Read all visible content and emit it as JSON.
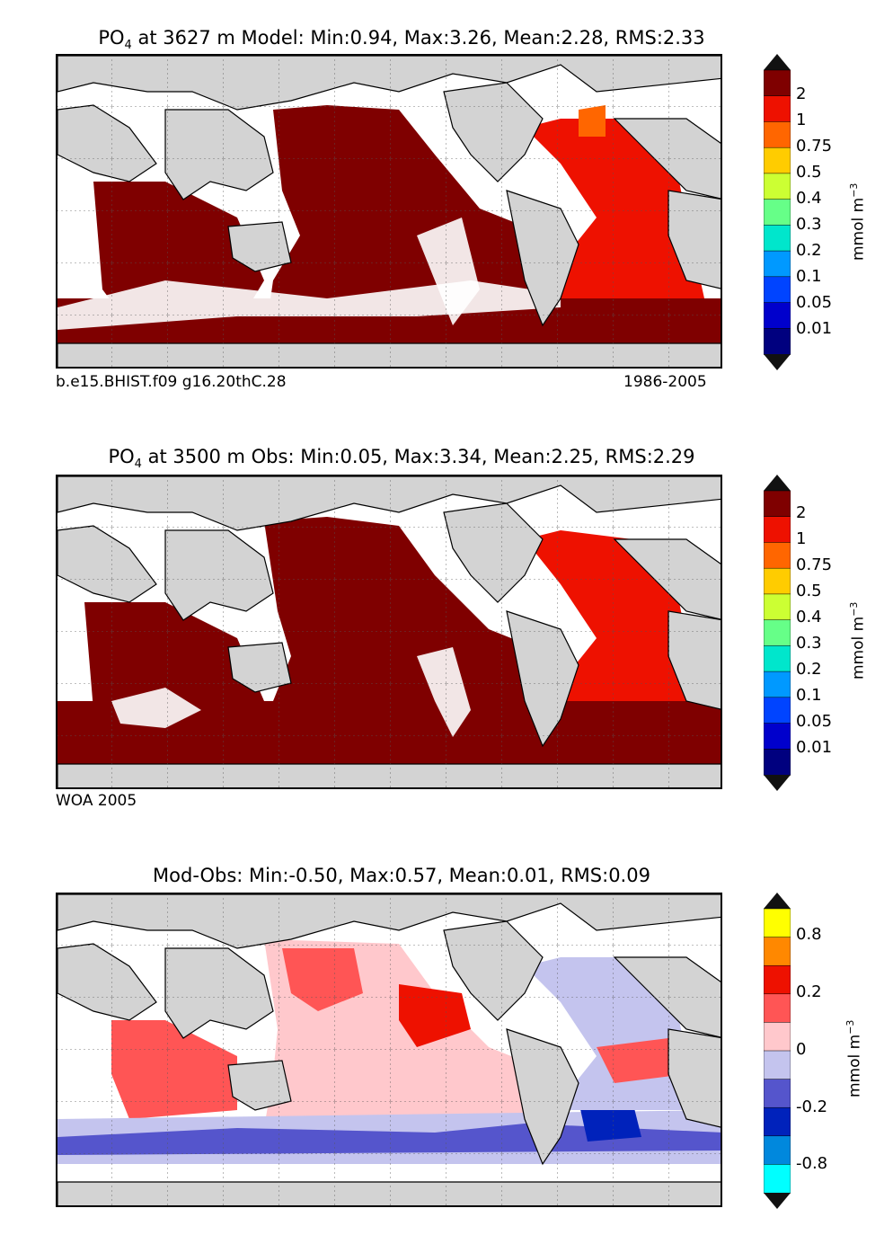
{
  "panels": [
    {
      "title_prefix": "PO",
      "title_sub": "4",
      "title_rest": " at 3627 m Model: Min:0.94, Max:3.26, Mean:2.28, RMS:2.33",
      "caption_left": "b.e15.BHIST.f09 g16.20thC.28",
      "caption_right": "1986-2005",
      "colorbar": {
        "unit_main": "mmol m",
        "unit_sup": "−3",
        "colors": [
          "#00007f",
          "#0000cc",
          "#0044ff",
          "#0099ff",
          "#00e6cc",
          "#66ff88",
          "#ccff33",
          "#ffcc00",
          "#ff6600",
          "#ee1100",
          "#7f0000"
        ],
        "ticks": [
          "2",
          "1",
          "0.75",
          "0.5",
          "0.4",
          "0.3",
          "0.2",
          "0.1",
          "0.05",
          "0.01"
        ]
      }
    },
    {
      "title_prefix": "PO",
      "title_sub": "4",
      "title_rest": " at 3500 m Obs: Min:0.05, Max:3.34, Mean:2.25, RMS:2.29",
      "caption_left": "WOA 2005",
      "caption_right": "",
      "colorbar": {
        "unit_main": "mmol m",
        "unit_sup": "−3",
        "colors": [
          "#00007f",
          "#0000cc",
          "#0044ff",
          "#0099ff",
          "#00e6cc",
          "#66ff88",
          "#ccff33",
          "#ffcc00",
          "#ff6600",
          "#ee1100",
          "#7f0000"
        ],
        "ticks": [
          "2",
          "1",
          "0.75",
          "0.5",
          "0.4",
          "0.3",
          "0.2",
          "0.1",
          "0.05",
          "0.01"
        ]
      }
    },
    {
      "title_prefix": "",
      "title_sub": "",
      "title_rest": "Mod-Obs: Min:-0.50, Max:0.57, Mean:0.01, RMS:0.09",
      "caption_left": "",
      "caption_right": "",
      "colorbar": {
        "unit_main": "mmol m",
        "unit_sup": "−3",
        "colors": [
          "#00ffff",
          "#0088dd",
          "#0022bb",
          "#5555cc",
          "#c4c4ee",
          "#ffc8cc",
          "#ff5555",
          "#ee1100",
          "#ff8800",
          "#ffff00"
        ],
        "ticks": [
          "0.8",
          "0.2",
          "0",
          "-0.2",
          "-0.8"
        ]
      }
    }
  ],
  "chart_data": [
    {
      "type": "heatmap",
      "title": "PO4 at 3627 m Model: Min:0.94, Max:3.26, Mean:2.28, RMS:2.33",
      "variable": "PO4",
      "depth_m": 3627,
      "stats": {
        "min": 0.94,
        "max": 3.26,
        "mean": 2.28,
        "rms": 2.33
      },
      "colorbar_levels": [
        0.01,
        0.05,
        0.1,
        0.2,
        0.3,
        0.4,
        0.5,
        0.75,
        1,
        2
      ],
      "colorbar_label": "mmol m-3",
      "regions": {
        "Pacific": ">2",
        "Indian": ">2",
        "Southern Ocean": ">2",
        "Atlantic": "1-2",
        "Labrador Sea": "0.75-1"
      }
    },
    {
      "type": "heatmap",
      "title": "PO4 at 3500 m Obs: Min:0.05, Max:3.34, Mean:2.25, RMS:2.29",
      "variable": "PO4",
      "depth_m": 3500,
      "stats": {
        "min": 0.05,
        "max": 3.34,
        "mean": 2.25,
        "rms": 2.29
      },
      "colorbar_levels": [
        0.01,
        0.05,
        0.1,
        0.2,
        0.3,
        0.4,
        0.5,
        0.75,
        1,
        2
      ],
      "colorbar_label": "mmol m-3",
      "regions": {
        "Pacific": ">2",
        "Indian": ">2",
        "Southern Ocean": ">2",
        "Atlantic": "1-2"
      }
    },
    {
      "type": "heatmap",
      "title": "Mod-Obs: Min:-0.50, Max:0.57, Mean:0.01, RMS:0.09",
      "stats": {
        "min": -0.5,
        "max": 0.57,
        "mean": 0.01,
        "rms": 0.09
      },
      "colorbar_levels": [
        -0.8,
        -0.2,
        0,
        0.2,
        0.8
      ],
      "colorbar_label": "mmol m-3",
      "regions": {
        "North Pacific": "0 to 0.2",
        "Southern Ocean": "-0.2 to 0",
        "South Atlantic": "-0.8 to -0.2",
        "Indian": "0 to 0.2"
      }
    }
  ]
}
